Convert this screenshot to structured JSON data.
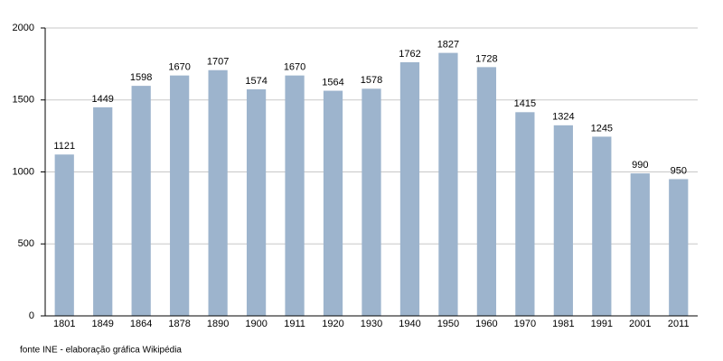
{
  "chart_data": {
    "type": "bar",
    "categories": [
      "1801",
      "1849",
      "1864",
      "1878",
      "1890",
      "1900",
      "1911",
      "1920",
      "1930",
      "1940",
      "1950",
      "1960",
      "1970",
      "1981",
      "1991",
      "2001",
      "2011"
    ],
    "values": [
      1121,
      1449,
      1598,
      1670,
      1707,
      1574,
      1670,
      1564,
      1578,
      1762,
      1827,
      1728,
      1415,
      1324,
      1245,
      990,
      950
    ],
    "color": "#9db4cd",
    "ylim": [
      0,
      2000
    ],
    "yticks": [
      0,
      500,
      1000,
      1500,
      2000
    ],
    "grid": true,
    "source": "fonte INE - elaboração gráfica Wikipédia"
  }
}
